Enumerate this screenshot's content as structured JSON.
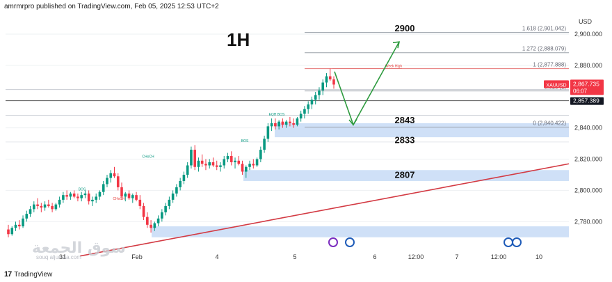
{
  "header": {
    "publisher_line": "amrmrpro published on TradingView.com, Feb 05, 2025 12:53 UTC+2"
  },
  "timeframe_label": "1H",
  "footer": {
    "logo_glyph": "17",
    "brand": "TradingView"
  },
  "watermark": {
    "text": "سوق الجمعة",
    "sub": "souq aljumaa.com"
  },
  "colors": {
    "up": "#089981",
    "down": "#f23645",
    "zone": "#cfe0f7",
    "trend_line": "#d33a43",
    "arrow": "#2e9b3f",
    "price_badge": "#f23645",
    "last_badge": "#131722",
    "grid": "#eef0f3"
  },
  "chart_data": {
    "type": "candlestick",
    "symbol": "XAUUSD",
    "currency_label": "USD",
    "ylim": [
      2765,
      2912
    ],
    "y_ticks": [
      {
        "value": 2900,
        "label": "2,900.000"
      },
      {
        "value": 2880,
        "label": "2,880.000"
      },
      {
        "value": 2840,
        "label": "2,840.000"
      },
      {
        "value": 2820,
        "label": "2,820.000"
      },
      {
        "value": 2800,
        "label": "2,800.000"
      },
      {
        "value": 2780,
        "label": "2,780.000"
      }
    ],
    "x_ticks": [
      "31",
      "Feb",
      "4",
      "5",
      "6",
      "12:00",
      "7",
      "12:00",
      "10"
    ],
    "price_badge": {
      "symbol": "XAUUSD",
      "price": "2,867.735",
      "countdown": "06:07",
      "value": 2867.735
    },
    "last_close_badge": {
      "price": "2,857.389",
      "value": 2857.389
    },
    "fib_levels": [
      {
        "label": "1.618 (2,901.042)",
        "value": 2901.042
      },
      {
        "label": "1.272 (2,888.079)",
        "value": 2888.079
      },
      {
        "label": "1 (2,877.888)",
        "value": 2877.888
      },
      {
        "label": "0.618 (2,",
        "value": 2863.6
      },
      {
        "label": "0 (2,840.422)",
        "value": 2840.422
      }
    ],
    "level_labels": [
      {
        "label": "2900",
        "value": 2900
      },
      {
        "label": "2843",
        "value": 2843
      },
      {
        "label": "2833",
        "value": 2833
      },
      {
        "label": "2807",
        "value": 2807
      }
    ],
    "zones": [
      {
        "from": 2834,
        "to": 2843
      },
      {
        "from": 2806,
        "to": 2813
      },
      {
        "from": 2770,
        "to": 2777
      }
    ],
    "annotations": [
      {
        "text": "Week High",
        "value": 2877.9
      },
      {
        "text": "BOS",
        "value": 2847
      },
      {
        "text": "BOS",
        "value": 2830
      },
      {
        "text": "CHoCH",
        "value": 2820
      },
      {
        "text": "BOS",
        "value": 2799
      },
      {
        "text": "CHoCH",
        "value": 2793
      },
      {
        "text": "EQH",
        "value": 2847
      }
    ],
    "projection": {
      "from": 2876,
      "low": 2842,
      "to": 2895
    },
    "trend_line": {
      "from": 2758,
      "to": 2817
    },
    "candles": [
      {
        "o": 2775,
        "h": 2778,
        "l": 2770,
        "c": 2772
      },
      {
        "o": 2772,
        "h": 2777,
        "l": 2771,
        "c": 2776
      },
      {
        "o": 2776,
        "h": 2780,
        "l": 2774,
        "c": 2778
      },
      {
        "o": 2778,
        "h": 2781,
        "l": 2775,
        "c": 2777
      },
      {
        "o": 2777,
        "h": 2784,
        "l": 2776,
        "c": 2782
      },
      {
        "o": 2782,
        "h": 2787,
        "l": 2780,
        "c": 2785
      },
      {
        "o": 2785,
        "h": 2790,
        "l": 2783,
        "c": 2788
      },
      {
        "o": 2788,
        "h": 2793,
        "l": 2786,
        "c": 2791
      },
      {
        "o": 2791,
        "h": 2795,
        "l": 2788,
        "c": 2790
      },
      {
        "o": 2790,
        "h": 2792,
        "l": 2786,
        "c": 2789
      },
      {
        "o": 2789,
        "h": 2793,
        "l": 2787,
        "c": 2791
      },
      {
        "o": 2791,
        "h": 2794,
        "l": 2789,
        "c": 2790
      },
      {
        "o": 2790,
        "h": 2792,
        "l": 2786,
        "c": 2788
      },
      {
        "o": 2788,
        "h": 2792,
        "l": 2787,
        "c": 2791
      },
      {
        "o": 2791,
        "h": 2796,
        "l": 2789,
        "c": 2794
      },
      {
        "o": 2794,
        "h": 2799,
        "l": 2792,
        "c": 2797
      },
      {
        "o": 2797,
        "h": 2800,
        "l": 2794,
        "c": 2796
      },
      {
        "o": 2796,
        "h": 2799,
        "l": 2794,
        "c": 2798
      },
      {
        "o": 2798,
        "h": 2800,
        "l": 2795,
        "c": 2796
      },
      {
        "o": 2796,
        "h": 2798,
        "l": 2793,
        "c": 2795
      },
      {
        "o": 2795,
        "h": 2799,
        "l": 2793,
        "c": 2797
      },
      {
        "o": 2797,
        "h": 2800,
        "l": 2795,
        "c": 2798
      },
      {
        "o": 2798,
        "h": 2800,
        "l": 2791,
        "c": 2793
      },
      {
        "o": 2793,
        "h": 2796,
        "l": 2790,
        "c": 2794
      },
      {
        "o": 2794,
        "h": 2798,
        "l": 2792,
        "c": 2796
      },
      {
        "o": 2796,
        "h": 2800,
        "l": 2794,
        "c": 2799
      },
      {
        "o": 2799,
        "h": 2806,
        "l": 2797,
        "c": 2804
      },
      {
        "o": 2804,
        "h": 2810,
        "l": 2802,
        "c": 2808
      },
      {
        "o": 2808,
        "h": 2813,
        "l": 2805,
        "c": 2811
      },
      {
        "o": 2811,
        "h": 2815,
        "l": 2808,
        "c": 2809
      },
      {
        "o": 2809,
        "h": 2811,
        "l": 2800,
        "c": 2802
      },
      {
        "o": 2802,
        "h": 2805,
        "l": 2794,
        "c": 2796
      },
      {
        "o": 2796,
        "h": 2799,
        "l": 2793,
        "c": 2798
      },
      {
        "o": 2798,
        "h": 2800,
        "l": 2794,
        "c": 2795
      },
      {
        "o": 2795,
        "h": 2798,
        "l": 2792,
        "c": 2797
      },
      {
        "o": 2797,
        "h": 2799,
        "l": 2793,
        "c": 2794
      },
      {
        "o": 2794,
        "h": 2797,
        "l": 2788,
        "c": 2790
      },
      {
        "o": 2790,
        "h": 2792,
        "l": 2781,
        "c": 2783
      },
      {
        "o": 2783,
        "h": 2786,
        "l": 2776,
        "c": 2778
      },
      {
        "o": 2778,
        "h": 2781,
        "l": 2773,
        "c": 2776
      },
      {
        "o": 2776,
        "h": 2780,
        "l": 2774,
        "c": 2779
      },
      {
        "o": 2779,
        "h": 2784,
        "l": 2777,
        "c": 2782
      },
      {
        "o": 2782,
        "h": 2788,
        "l": 2780,
        "c": 2786
      },
      {
        "o": 2786,
        "h": 2792,
        "l": 2784,
        "c": 2790
      },
      {
        "o": 2790,
        "h": 2796,
        "l": 2788,
        "c": 2794
      },
      {
        "o": 2794,
        "h": 2800,
        "l": 2792,
        "c": 2798
      },
      {
        "o": 2798,
        "h": 2804,
        "l": 2796,
        "c": 2802
      },
      {
        "o": 2802,
        "h": 2808,
        "l": 2800,
        "c": 2806
      },
      {
        "o": 2806,
        "h": 2812,
        "l": 2804,
        "c": 2810
      },
      {
        "o": 2810,
        "h": 2818,
        "l": 2808,
        "c": 2816
      },
      {
        "o": 2816,
        "h": 2828,
        "l": 2814,
        "c": 2826
      },
      {
        "o": 2826,
        "h": 2829,
        "l": 2813,
        "c": 2815
      },
      {
        "o": 2815,
        "h": 2821,
        "l": 2812,
        "c": 2819
      },
      {
        "o": 2819,
        "h": 2823,
        "l": 2815,
        "c": 2817
      },
      {
        "o": 2817,
        "h": 2820,
        "l": 2813,
        "c": 2816
      },
      {
        "o": 2816,
        "h": 2820,
        "l": 2814,
        "c": 2818
      },
      {
        "o": 2818,
        "h": 2821,
        "l": 2815,
        "c": 2816
      },
      {
        "o": 2816,
        "h": 2819,
        "l": 2813,
        "c": 2815
      },
      {
        "o": 2815,
        "h": 2818,
        "l": 2812,
        "c": 2816
      },
      {
        "o": 2816,
        "h": 2822,
        "l": 2814,
        "c": 2820
      },
      {
        "o": 2820,
        "h": 2824,
        "l": 2818,
        "c": 2822
      },
      {
        "o": 2822,
        "h": 2825,
        "l": 2816,
        "c": 2818
      },
      {
        "o": 2818,
        "h": 2821,
        "l": 2814,
        "c": 2819
      },
      {
        "o": 2819,
        "h": 2822,
        "l": 2816,
        "c": 2817
      },
      {
        "o": 2817,
        "h": 2819,
        "l": 2810,
        "c": 2812
      },
      {
        "o": 2812,
        "h": 2816,
        "l": 2808,
        "c": 2815
      },
      {
        "o": 2815,
        "h": 2819,
        "l": 2813,
        "c": 2817
      },
      {
        "o": 2817,
        "h": 2820,
        "l": 2814,
        "c": 2816
      },
      {
        "o": 2816,
        "h": 2821,
        "l": 2815,
        "c": 2820
      },
      {
        "o": 2820,
        "h": 2828,
        "l": 2818,
        "c": 2826
      },
      {
        "o": 2826,
        "h": 2835,
        "l": 2824,
        "c": 2833
      },
      {
        "o": 2833,
        "h": 2843,
        "l": 2831,
        "c": 2841
      },
      {
        "o": 2841,
        "h": 2846,
        "l": 2838,
        "c": 2843
      },
      {
        "o": 2843,
        "h": 2846,
        "l": 2839,
        "c": 2841
      },
      {
        "o": 2841,
        "h": 2845,
        "l": 2839,
        "c": 2844
      },
      {
        "o": 2844,
        "h": 2846,
        "l": 2840,
        "c": 2842
      },
      {
        "o": 2842,
        "h": 2845,
        "l": 2840,
        "c": 2844
      },
      {
        "o": 2844,
        "h": 2847,
        "l": 2841,
        "c": 2843
      },
      {
        "o": 2843,
        "h": 2846,
        "l": 2840,
        "c": 2842
      },
      {
        "o": 2842,
        "h": 2847,
        "l": 2841,
        "c": 2846
      },
      {
        "o": 2846,
        "h": 2851,
        "l": 2844,
        "c": 2849
      },
      {
        "o": 2849,
        "h": 2854,
        "l": 2846,
        "c": 2852
      },
      {
        "o": 2852,
        "h": 2857,
        "l": 2849,
        "c": 2855
      },
      {
        "o": 2855,
        "h": 2860,
        "l": 2852,
        "c": 2858
      },
      {
        "o": 2858,
        "h": 2863,
        "l": 2855,
        "c": 2861
      },
      {
        "o": 2861,
        "h": 2866,
        "l": 2858,
        "c": 2864
      },
      {
        "o": 2864,
        "h": 2871,
        "l": 2861,
        "c": 2869
      },
      {
        "o": 2869,
        "h": 2875,
        "l": 2866,
        "c": 2873
      },
      {
        "o": 2873,
        "h": 2878,
        "l": 2870,
        "c": 2871
      },
      {
        "o": 2871,
        "h": 2873,
        "l": 2865,
        "c": 2867.7
      }
    ]
  }
}
